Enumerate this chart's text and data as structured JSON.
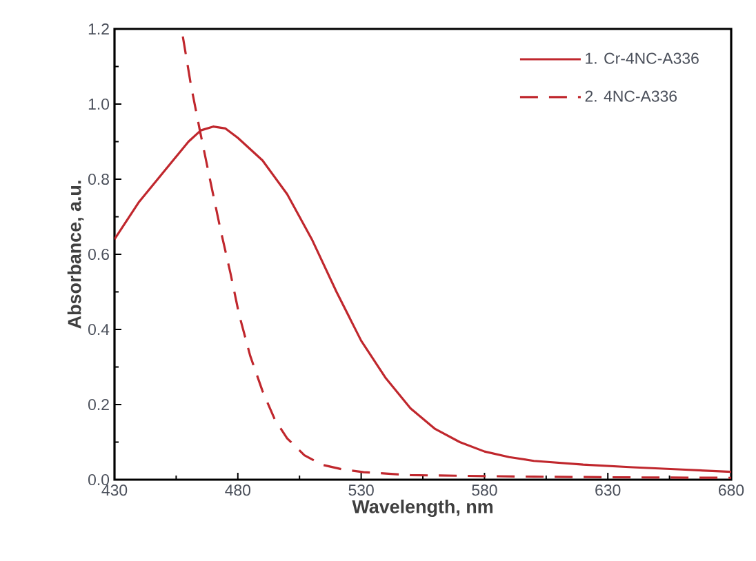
{
  "chart_data": {
    "type": "line",
    "xlabel": "Wavelength, nm",
    "ylabel": "Absorbance, a.u.",
    "xlim": [
      430,
      680
    ],
    "xticks": [
      430,
      480,
      530,
      580,
      630,
      680
    ],
    "ylim": [
      0,
      1.2
    ],
    "yticks": [
      {
        "value": 0,
        "label": "0.0"
      },
      0.2,
      0.4,
      0.6,
      0.8,
      {
        "value": 1,
        "label": "1.0"
      },
      1.2
    ],
    "legend": "top right",
    "grid": false,
    "marker": "none",
    "series": [
      {
        "name": "1. Cr-4NC-A336",
        "color": "#c0272d",
        "line_style": "solid",
        "x": [
          430,
          440,
          450,
          460,
          465,
          470,
          475,
          480,
          490,
          500,
          510,
          520,
          530,
          540,
          550,
          560,
          570,
          580,
          590,
          600,
          620,
          640,
          660,
          680
        ],
        "values": [
          0.64,
          0.74,
          0.82,
          0.9,
          0.93,
          0.94,
          0.935,
          0.91,
          0.85,
          0.76,
          0.64,
          0.5,
          0.37,
          0.27,
          0.19,
          0.135,
          0.1,
          0.075,
          0.06,
          0.05,
          0.04,
          0.033,
          0.027,
          0.021
        ]
      },
      {
        "name": "2. 4NC-A336",
        "color": "#c0272d",
        "line_style": "dashed",
        "x": [
          457.7,
          461,
          464.6,
          469,
          473,
          477,
          480.5,
          485,
          490,
          495,
          500,
          507,
          514,
          522,
          531,
          550,
          600,
          640,
          680
        ],
        "values": [
          1.18,
          1.05,
          0.93,
          0.79,
          0.665,
          0.55,
          0.44,
          0.33,
          0.236,
          0.16,
          0.11,
          0.065,
          0.04,
          0.028,
          0.02,
          0.012,
          0.008,
          0.006,
          0.005
        ]
      }
    ]
  }
}
